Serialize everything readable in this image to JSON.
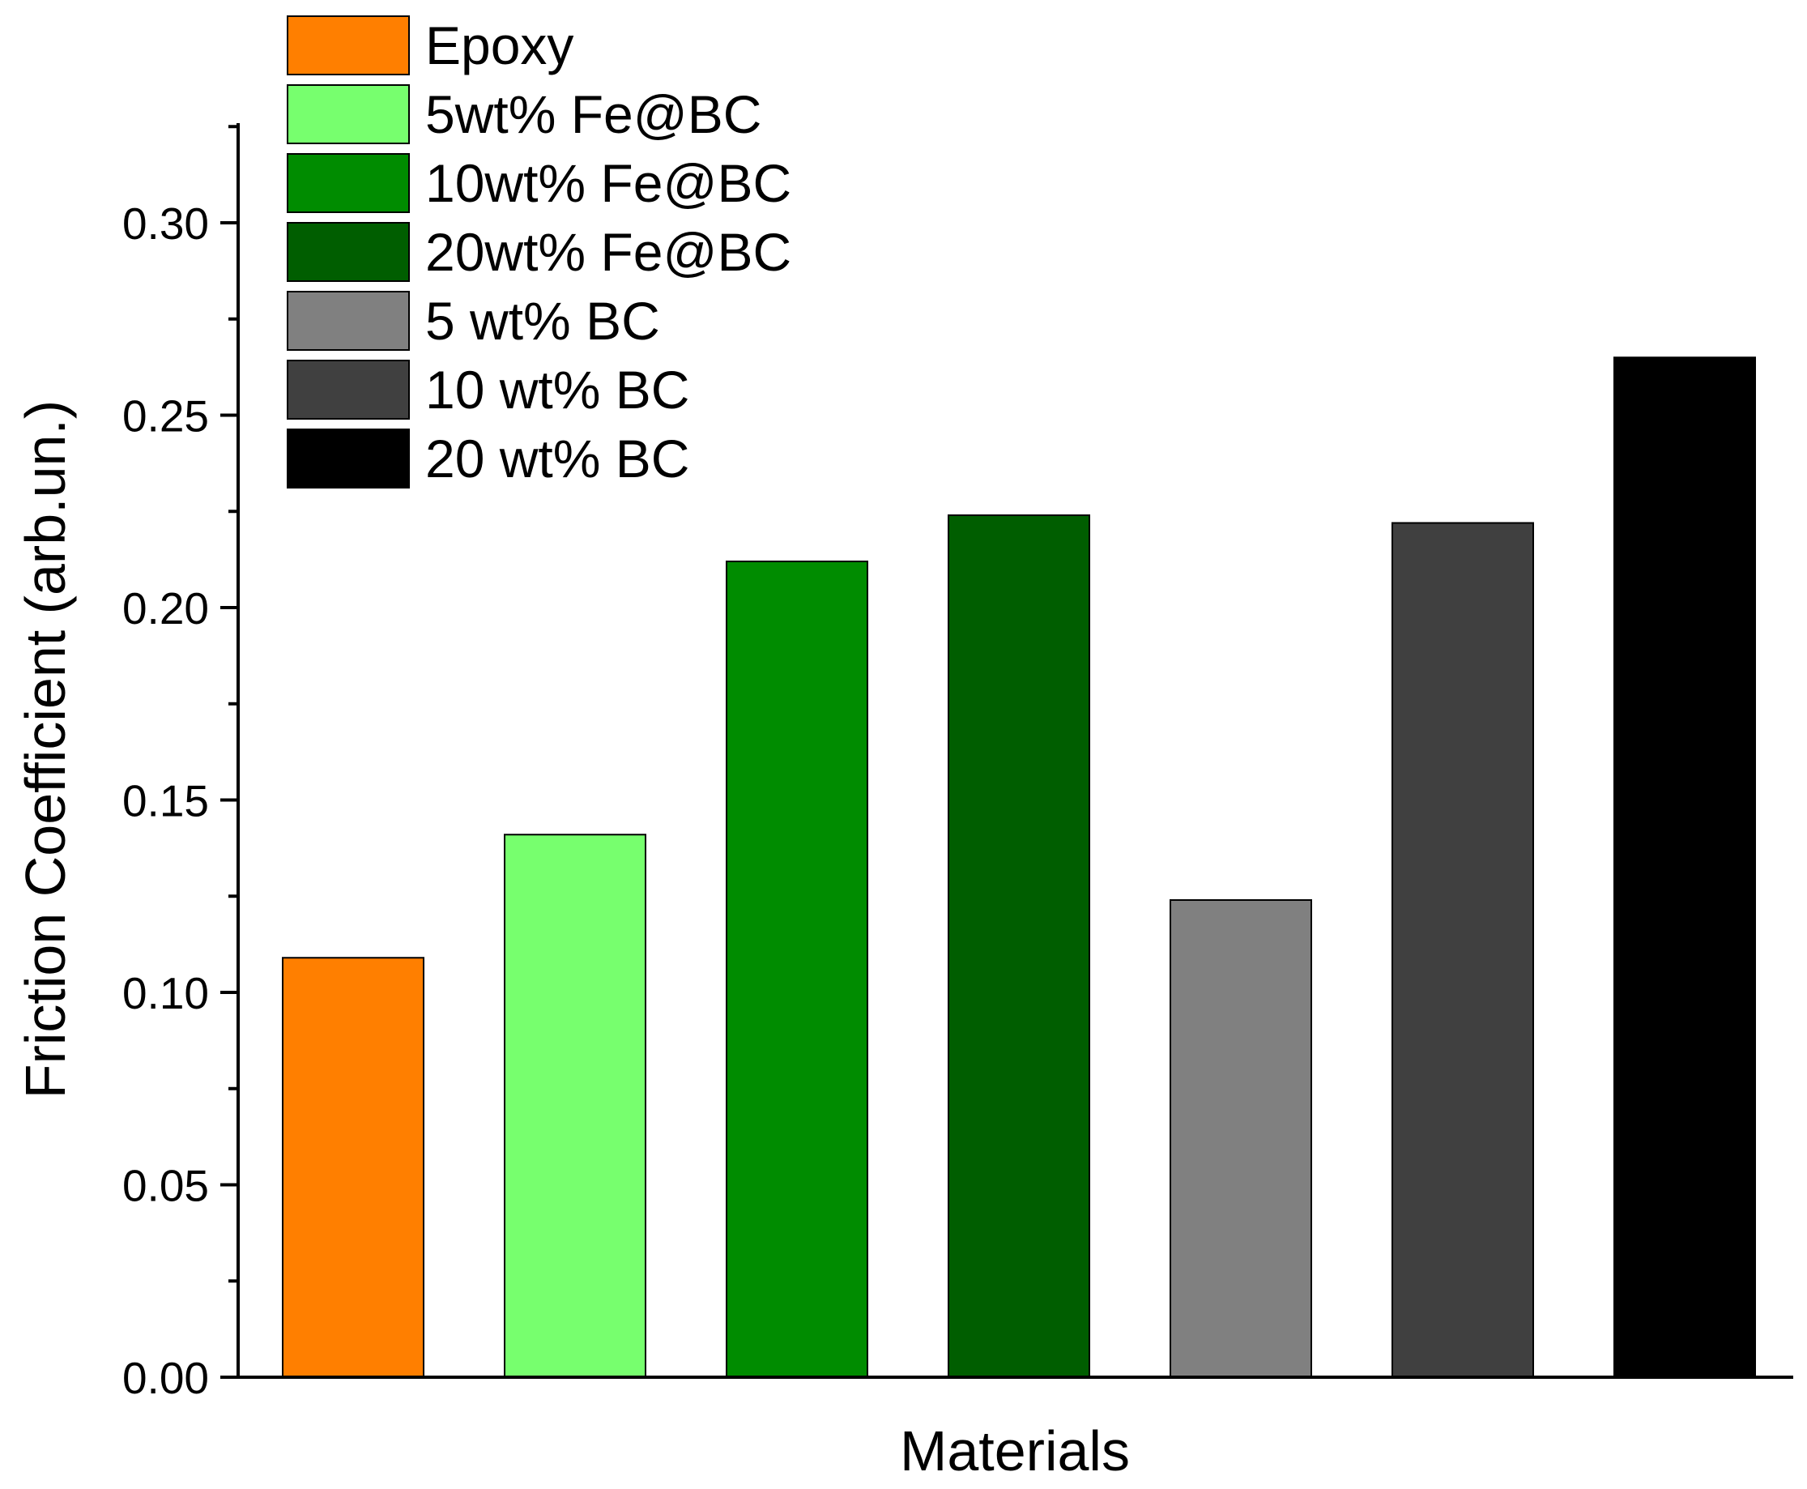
{
  "chart_data": {
    "type": "bar",
    "xlabel": "Materials",
    "ylabel": "Friction Coefficient (arb.un.)",
    "ylim": [
      0,
      0.325
    ],
    "yticks": [
      0.0,
      0.05,
      0.1,
      0.15,
      0.2,
      0.25,
      0.3
    ],
    "ytick_labels": [
      "0.00",
      "0.05",
      "0.10",
      "0.15",
      "0.20",
      "0.25",
      "0.30"
    ],
    "categories": [
      "Epoxy",
      "5wt% Fe@BC",
      "10wt% Fe@BC",
      "20wt% Fe@BC",
      "5 wt% BC",
      "10 wt% BC",
      "20 wt% BC"
    ],
    "values": [
      0.109,
      0.141,
      0.212,
      0.224,
      0.124,
      0.222,
      0.265
    ],
    "colors": [
      "#ff7f00",
      "#77ff6e",
      "#008c00",
      "#005e00",
      "#808080",
      "#404040",
      "#000000"
    ],
    "legend_position": "top-left",
    "grid": false
  }
}
